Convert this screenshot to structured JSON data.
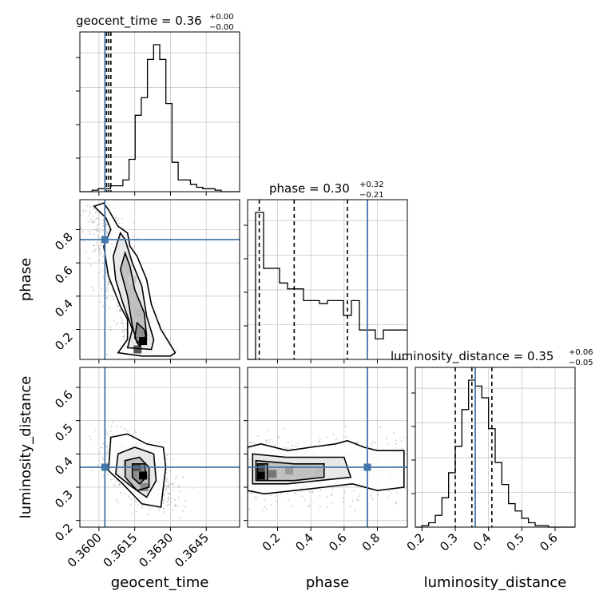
{
  "chart_data": {
    "type": "corner",
    "truth_color": "#4477aa",
    "parameters": [
      "geocent_time",
      "phase",
      "luminosity_distance"
    ],
    "truths": {
      "geocent_time": 0.36025,
      "phase": 0.74,
      "luminosity_distance": 0.36
    },
    "titles": [
      {
        "param": "geocent_time",
        "label": "geocent_time = 0.36",
        "plus": "+0.00",
        "minus": "−0.00"
      },
      {
        "param": "phase",
        "label": "phase = 0.30",
        "plus": "+0.32",
        "minus": "−0.21"
      },
      {
        "param": "luminosity_distance",
        "label": "luminosity_distance = 0.35",
        "plus": "+0.06",
        "minus": "−0.05"
      }
    ],
    "axis_labels": {
      "geocent_time": "geocent_time",
      "phase": "phase",
      "luminosity_distance": "luminosity_distance"
    },
    "ranges": {
      "geocent_time": [
        0.3592,
        0.3659
      ],
      "phase": [
        0.02,
        0.98
      ],
      "luminosity_distance": [
        0.18,
        0.66
      ]
    },
    "ticks": {
      "geocent_time": [
        "0.3600",
        "0.3615",
        "0.3630",
        "0.3645"
      ],
      "phase": [
        "0.2",
        "0.4",
        "0.6",
        "0.8"
      ],
      "luminosity_distance": [
        "0.2",
        "0.3",
        "0.4",
        "0.5",
        "0.6"
      ]
    },
    "tick_values": {
      "geocent_time": [
        0.36,
        0.3615,
        0.363,
        0.3645
      ],
      "phase": [
        0.2,
        0.4,
        0.6,
        0.8
      ],
      "luminosity_distance": [
        0.2,
        0.3,
        0.4,
        0.5,
        0.6
      ]
    },
    "quantiles": {
      "geocent_time": [
        0.36032,
        0.36041,
        0.3605
      ],
      "phase": [
        0.09,
        0.3,
        0.62
      ],
      "luminosity_distance": [
        0.3,
        0.35,
        0.41
      ]
    },
    "histograms": {
      "geocent_time": {
        "edges_range": [
          0.3592,
          0.3659
        ],
        "counts": [
          0,
          0,
          1,
          2,
          2,
          4,
          4,
          8,
          22,
          52,
          64,
          90,
          100,
          90,
          60,
          20,
          8,
          8,
          5,
          3,
          2,
          2,
          1,
          0,
          0,
          0
        ]
      },
      "phase": {
        "edges_range": [
          0.02,
          0.98
        ],
        "counts": [
          0,
          100,
          62,
          62,
          52,
          48,
          48,
          40,
          40,
          38,
          40,
          40,
          30,
          40,
          20,
          20,
          14,
          20,
          20,
          20
        ]
      },
      "luminosity_distance": {
        "edges_range": [
          0.18,
          0.66
        ],
        "counts": [
          0,
          1,
          3,
          8,
          20,
          37,
          55,
          80,
          100,
          96,
          88,
          67,
          44,
          29,
          16,
          11,
          6,
          3,
          1,
          1,
          0,
          0,
          0,
          0
        ]
      }
    },
    "contour_levels": 4,
    "grid": true
  }
}
